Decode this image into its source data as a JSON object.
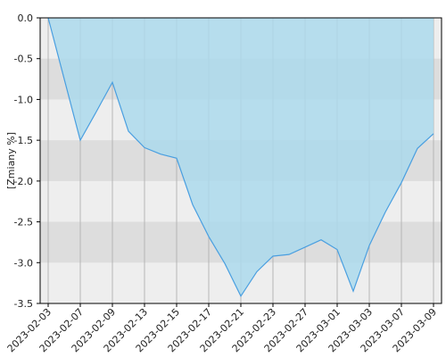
{
  "chart_data": {
    "type": "area",
    "y_label": "[Zmiany %]",
    "categories": [
      "2023-02-03",
      null,
      "2023-02-07",
      null,
      "2023-02-09",
      null,
      "2023-02-13",
      null,
      "2023-02-15",
      null,
      "2023-02-17",
      null,
      "2023-02-21",
      null,
      "2023-02-23",
      null,
      "2023-02-27",
      null,
      "2023-03-01",
      null,
      "2023-03-03",
      null,
      "2023-03-07",
      null,
      "2023-03-09"
    ],
    "series": [
      {
        "name": "Zmiany",
        "color": "#4a9fe0",
        "fill": "#acd9ec",
        "values": [
          0.0,
          -0.75,
          -1.5,
          -1.15,
          -0.79,
          -1.39,
          -1.59,
          -1.67,
          -1.72,
          -2.29,
          -2.68,
          -3.01,
          -3.41,
          -3.11,
          -2.92,
          -2.9,
          -2.81,
          -2.72,
          -2.84,
          -3.35,
          -2.79,
          -2.38,
          -2.02,
          -1.6,
          -1.42
        ]
      }
    ],
    "ylim": [
      -3.5,
      0.0
    ],
    "yticks": [
      {
        "value": 0,
        "label": "0.0"
      },
      -0.5,
      {
        "value": -1,
        "label": "-1.0"
      },
      -1.5,
      {
        "value": -2,
        "label": "-2.0"
      },
      -2.5,
      {
        "value": -3,
        "label": "-3.0"
      },
      -3.5
    ],
    "grid": true
  }
}
